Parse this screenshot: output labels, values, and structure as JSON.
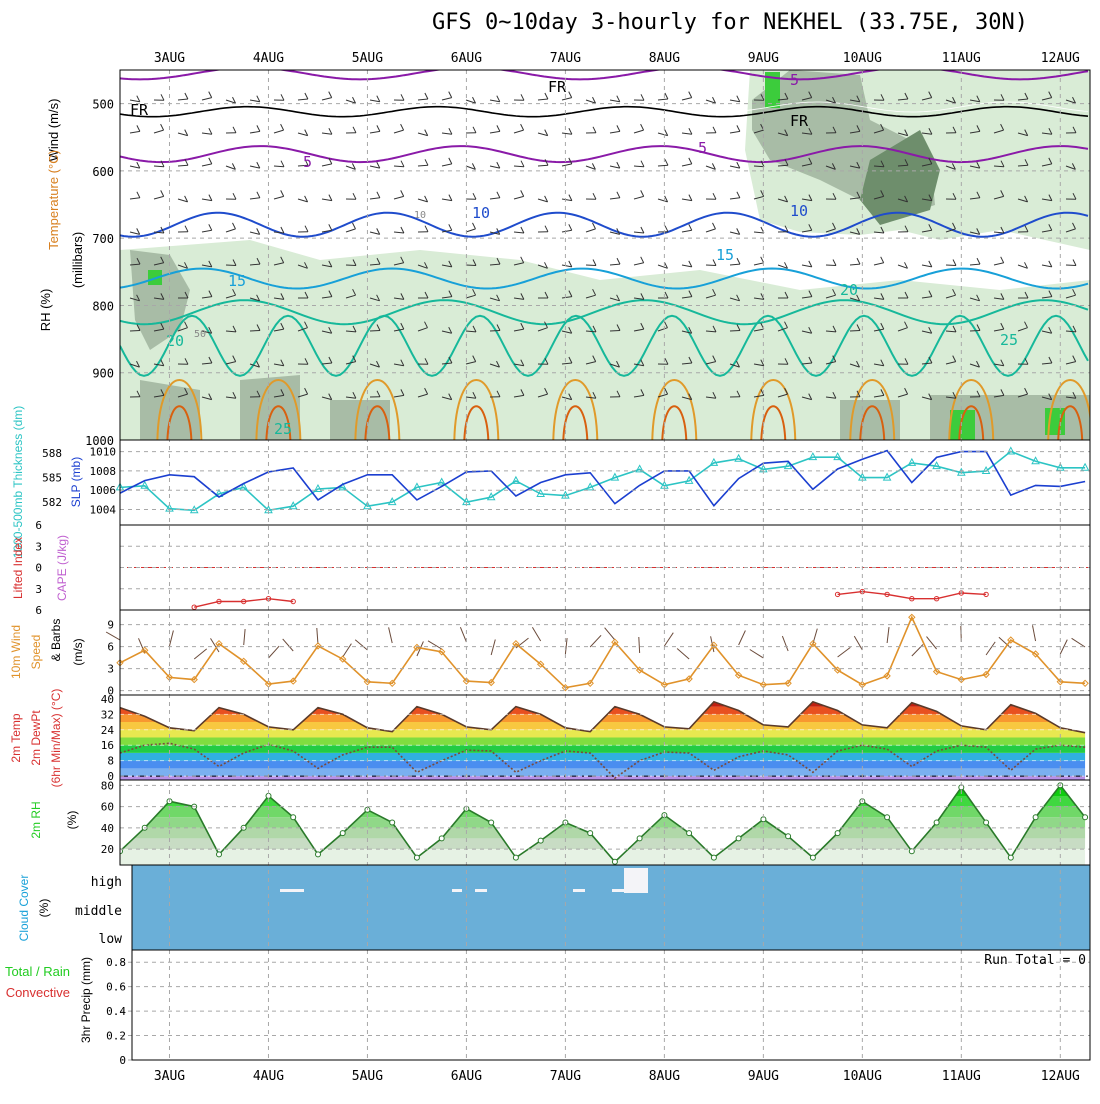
{
  "title": "GFS 0~10day 3-hourly for NEKHEL (33.75E, 30N)",
  "colors": {
    "grid": "#a8a8a8",
    "frame": "#000000",
    "temp_purple": "#8a1aa8",
    "temp_blue": "#1f4ccc",
    "temp_cyan": "#17a0d8",
    "temp_teal": "#16b89a",
    "temp_orange": "#e09a2a",
    "temp_red": "#d8600f",
    "rh_light": "#d9ecd6",
    "rh_mid": "#a8bca6",
    "rh_dark": "#6e8e6c",
    "rh_green": "#3ccc3c",
    "slp": "#1b3fd0",
    "thickness": "#2cc4c4",
    "lifted": "#d83030",
    "cape": "#c060d0",
    "wind10": "#e0922a",
    "barb": "#6a4a3a",
    "cloud": "#6aafd8",
    "cloud_white": "#f4f4f8",
    "rh2m": "#22cc22",
    "rh2m_line": "#2a7a2a",
    "precip_total": "#22cc22",
    "precip_conv": "#d83030"
  },
  "time_axis": {
    "labels": [
      "3AUG",
      "4AUG",
      "5AUG",
      "6AUG",
      "7AUG",
      "8AUG",
      "9AUG",
      "10AUG",
      "11AUG",
      "12AUG"
    ],
    "start_day": 2.5,
    "end_day": 12.3
  },
  "panels": {
    "upper_air": {
      "ylabels": [
        "Wind (m/s)",
        "Temperature (°C)",
        "RH (%)",
        "(millibars)"
      ],
      "pressure_ticks": [
        "500",
        "600",
        "700",
        "800",
        "900",
        "1000"
      ],
      "contour_labels": [
        "FR",
        "FR",
        "FR",
        "5",
        "5",
        "5",
        "10",
        "10",
        "15",
        "15",
        "20",
        "20",
        "25",
        "25",
        "10",
        "50"
      ]
    },
    "slp": {
      "ylabel_left": "1000-500mb Thickness (dm)",
      "ylabel_right": "SLP (mb)",
      "thickness_ticks": [
        "588",
        "585",
        "582"
      ],
      "slp_ticks": [
        "1010",
        "1008",
        "1006",
        "1004"
      ]
    },
    "lifted": {
      "ylabel_left": "Lifted Index",
      "ylabel_right": "CAPE (J/kg)",
      "ticks": [
        "-6",
        "-3",
        "0",
        "3",
        "6"
      ]
    },
    "wind10": {
      "ylabel_a": "10m Wind",
      "ylabel_b": "Speed",
      "ylabel_c": "& Barbs",
      "ylabel_unit": "(m/s)",
      "ticks": [
        "9",
        "6",
        "3",
        "0"
      ]
    },
    "temp2m": {
      "ylabel_a": "2m Temp",
      "ylabel_b": "2m DewPt",
      "ylabel_c": "(6hr Min/Max) (°C)",
      "ticks": [
        "40",
        "32",
        "24",
        "16",
        "8",
        "0"
      ]
    },
    "rh2m": {
      "ylabel_a": "2m RH",
      "ylabel_unit": "(%)",
      "ticks": [
        "80",
        "60",
        "40",
        "20"
      ]
    },
    "cloud": {
      "ylabel_a": "Cloud Cover",
      "ylabel_unit": "(%)",
      "levels": [
        "high",
        "middle",
        "low"
      ]
    },
    "precip": {
      "ylabel_a": "Total / Rain",
      "ylabel_b": "Convective",
      "ylabel_c": "3hr Precip (mm)",
      "ticks": [
        "0.8",
        "0.6",
        "0.4",
        "0.2",
        "0"
      ],
      "run_total": "Run Total = 0"
    }
  },
  "chart_data": [
    {
      "type": "line",
      "name_ref": "Thickness and SLP",
      "x_unit": "day of August",
      "series": [
        {
          "name": "SLP (mb)",
          "x": [
            2.5,
            2.75,
            3.0,
            3.25,
            3.5,
            3.75,
            4.0,
            4.25,
            4.5,
            4.75,
            5.0,
            5.25,
            5.5,
            5.75,
            6.0,
            6.25,
            6.5,
            6.75,
            7.0,
            7.25,
            7.5,
            7.75,
            8.0,
            8.25,
            8.5,
            8.75,
            9.0,
            9.25,
            9.5,
            9.75,
            10.0,
            10.25,
            10.5,
            10.75,
            11.0,
            11.25,
            11.5,
            11.75,
            12.0,
            12.25
          ],
          "y": [
            1005.7,
            1007.0,
            1007.6,
            1007.4,
            1005.3,
            1006.7,
            1007.9,
            1008.3,
            1005.0,
            1006.6,
            1007.6,
            1007.6,
            1005.0,
            1006.4,
            1007.9,
            1008.0,
            1005.4,
            1006.8,
            1007.6,
            1007.8,
            1004.6,
            1006.5,
            1008.0,
            1008.0,
            1004.4,
            1007.2,
            1008.8,
            1009.0,
            1006.1,
            1008.2,
            1009.2,
            1010.1,
            1006.8,
            1009.4,
            1010.0,
            1010.0,
            1005.5,
            1006.5,
            1006.4,
            1006.9
          ]
        },
        {
          "name": "1000-500mb Thickness (dm)",
          "x": [
            2.5,
            2.75,
            3.0,
            3.25,
            3.5,
            3.75,
            4.0,
            4.25,
            4.5,
            4.75,
            5.0,
            5.25,
            5.5,
            5.75,
            6.0,
            6.25,
            6.5,
            6.75,
            7.0,
            7.25,
            7.5,
            7.75,
            8.0,
            8.25,
            8.5,
            8.75,
            9.0,
            9.25,
            9.5,
            9.75,
            10.0,
            10.25,
            10.5,
            10.75,
            11.0,
            11.25,
            11.5,
            11.75,
            12.0,
            12.25
          ],
          "y": [
            583.8,
            584.0,
            581.2,
            581.0,
            583.0,
            583.8,
            581.0,
            581.5,
            583.6,
            583.8,
            581.5,
            582.0,
            583.8,
            584.4,
            582.0,
            582.6,
            584.6,
            583.0,
            582.8,
            583.8,
            585.0,
            586.0,
            584.0,
            584.6,
            586.8,
            587.3,
            586.0,
            586.4,
            587.5,
            587.5,
            585.0,
            585.0,
            586.8,
            586.4,
            585.6,
            585.8,
            588.2,
            587.0,
            586.2,
            586.2
          ]
        }
      ]
    },
    {
      "type": "line",
      "name_ref": "Lifted Index",
      "series": [
        {
          "name": "Lifted Index",
          "x": [
            3.25,
            3.5,
            3.75,
            4.0,
            4.25,
            9.75,
            10.0,
            10.25,
            10.5,
            10.75,
            11.0,
            11.25
          ],
          "y": [
            5.6,
            4.8,
            4.8,
            4.4,
            4.8,
            3.8,
            3.4,
            3.8,
            4.4,
            4.4,
            3.6,
            3.8
          ]
        }
      ]
    },
    {
      "type": "line",
      "name_ref": "10m Wind",
      "series": [
        {
          "name": "10m Wind Speed (m/s)",
          "x": [
            2.5,
            2.75,
            3.0,
            3.25,
            3.5,
            3.75,
            4.0,
            4.25,
            4.5,
            4.75,
            5.0,
            5.25,
            5.5,
            5.75,
            6.0,
            6.25,
            6.5,
            6.75,
            7.0,
            7.25,
            7.5,
            7.75,
            8.0,
            8.25,
            8.5,
            8.75,
            9.0,
            9.25,
            9.5,
            9.75,
            10.0,
            10.25,
            10.5,
            10.75,
            11.0,
            11.25,
            11.5,
            11.75,
            12.0,
            12.25
          ],
          "y": [
            3.8,
            5.5,
            1.8,
            1.5,
            6.4,
            4.0,
            0.9,
            1.3,
            6.1,
            4.3,
            1.2,
            1.0,
            5.9,
            5.3,
            1.3,
            1.1,
            6.4,
            3.6,
            0.4,
            1.0,
            6.6,
            2.8,
            0.8,
            1.6,
            6.2,
            2.1,
            0.8,
            1.0,
            6.4,
            2.8,
            0.8,
            2.0,
            10.0,
            2.6,
            1.5,
            2.2,
            6.9,
            5.0,
            1.2,
            1.0
          ]
        }
      ]
    },
    {
      "type": "area",
      "name_ref": "2m Temperature",
      "series": [
        {
          "name": "2m Temp (°C)",
          "x": [
            2.5,
            2.75,
            3.0,
            3.25,
            3.5,
            3.75,
            4.0,
            4.25,
            4.5,
            4.75,
            5.0,
            5.25,
            5.5,
            5.75,
            6.0,
            6.25,
            6.5,
            6.75,
            7.0,
            7.25,
            7.5,
            7.75,
            8.0,
            8.25,
            8.5,
            8.75,
            9.0,
            9.25,
            9.5,
            9.75,
            10.0,
            10.25,
            10.5,
            10.75,
            11.0,
            11.25,
            11.5,
            11.75,
            12.0,
            12.25
          ],
          "y": [
            35.5,
            31,
            25,
            23.5,
            35.5,
            32,
            25.5,
            24,
            35.5,
            32,
            25,
            23,
            36,
            32,
            25.5,
            24,
            36,
            32,
            25,
            23,
            36,
            32,
            25.5,
            24.5,
            38.5,
            34,
            26.5,
            25.5,
            38.5,
            34,
            26.5,
            25,
            38,
            33.5,
            26,
            24,
            37,
            32.5,
            25,
            22.5
          ]
        },
        {
          "name": "2m DewPt (°C)",
          "x": [
            2.5,
            2.75,
            3.0,
            3.25,
            3.5,
            3.75,
            4.0,
            4.25,
            4.5,
            4.75,
            5.0,
            5.25,
            5.5,
            5.75,
            6.0,
            6.25,
            6.5,
            6.75,
            7.0,
            7.25,
            7.5,
            7.75,
            8.0,
            8.25,
            8.5,
            8.75,
            9.0,
            9.25,
            9.5,
            9.75,
            10.0,
            10.25,
            10.5,
            10.75,
            11.0,
            11.25,
            11.5,
            11.75,
            12.0,
            12.25
          ],
          "y": [
            12,
            16,
            17,
            14,
            5,
            12,
            16.5,
            13,
            4,
            11,
            15,
            15,
            2,
            8,
            13.5,
            13,
            2,
            8,
            13,
            12,
            -1,
            8,
            12.5,
            12,
            3,
            10,
            13,
            11,
            2,
            13,
            16,
            14,
            5,
            13,
            16,
            15,
            3,
            14,
            16,
            15
          ]
        }
      ]
    },
    {
      "type": "area",
      "name_ref": "2m RH",
      "series": [
        {
          "name": "2m RH (%)",
          "x": [
            2.5,
            2.75,
            3.0,
            3.25,
            3.5,
            3.75,
            4.0,
            4.25,
            4.5,
            4.75,
            5.0,
            5.25,
            5.5,
            5.75,
            6.0,
            6.25,
            6.5,
            6.75,
            7.0,
            7.25,
            7.5,
            7.75,
            8.0,
            8.25,
            8.5,
            8.75,
            9.0,
            9.25,
            9.5,
            9.75,
            10.0,
            10.25,
            10.5,
            10.75,
            11.0,
            11.25,
            11.5,
            11.75,
            12.0,
            12.25
          ],
          "y": [
            18,
            40,
            65,
            60,
            15,
            40,
            70,
            50,
            15,
            35,
            57,
            45,
            12,
            30,
            58,
            45,
            12,
            28,
            45,
            35,
            8,
            30,
            52,
            35,
            12,
            30,
            48,
            32,
            12,
            35,
            65,
            50,
            18,
            45,
            78,
            45,
            12,
            50,
            80,
            50
          ]
        }
      ]
    },
    {
      "type": "bar",
      "name_ref": "3hr Precip",
      "series": [
        {
          "name": "Total / Rain",
          "values": []
        },
        {
          "name": "Convective",
          "values": []
        }
      ],
      "ylim": [
        0,
        0.9
      ]
    }
  ]
}
